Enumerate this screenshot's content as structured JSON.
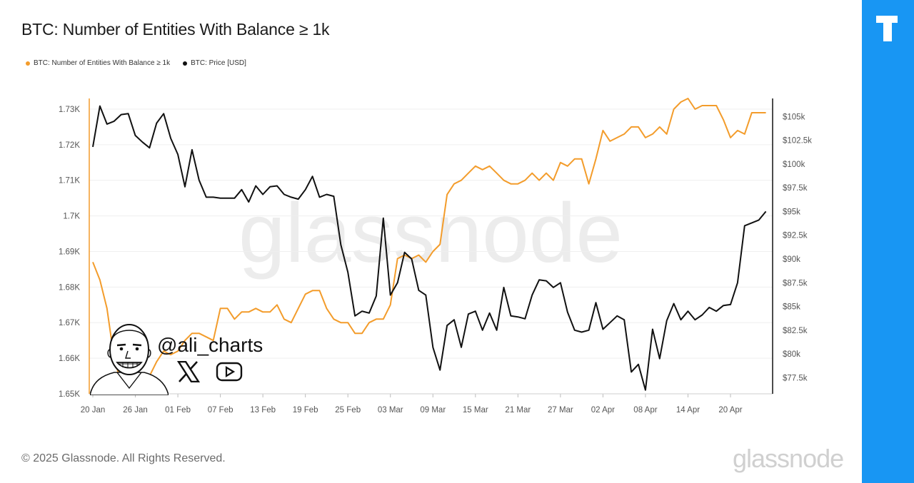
{
  "header": {
    "title": "BTC: Number of Entities With Balance ≥ 1k"
  },
  "footer": {
    "copyright": "© 2025 Glassnode. All Rights Reserved.",
    "brand": "glassnode"
  },
  "watermark": {
    "text": "glassnode",
    "author_handle": "@ali_charts"
  },
  "colors": {
    "entities": "#f39c2b",
    "price": "#111111",
    "accent": "#1896f3"
  },
  "icons": {
    "side": "tradingview-logo-icon",
    "x": "x-icon",
    "youtube": "youtube-icon"
  },
  "chart_data": {
    "type": "line",
    "x_ticks": [
      "20 Jan",
      "26 Jan",
      "01 Feb",
      "07 Feb",
      "13 Feb",
      "19 Feb",
      "25 Feb",
      "03 Mar",
      "09 Mar",
      "15 Mar",
      "21 Mar",
      "27 Mar",
      "02 Apr",
      "08 Apr",
      "14 Apr",
      "20 Apr"
    ],
    "y_left_ticks": [
      "1.65K",
      "1.66K",
      "1.67K",
      "1.68K",
      "1.69K",
      "1.7K",
      "1.71K",
      "1.72K",
      "1.73K"
    ],
    "y_right_ticks": [
      "$77.5k",
      "$80k",
      "$82.5k",
      "$85k",
      "$87.5k",
      "$90k",
      "$92.5k",
      "$95k",
      "$97.5k",
      "$100k",
      "$102.5k",
      "$105k"
    ],
    "y_left_range": [
      1650,
      1733
    ],
    "y_right_range": [
      75800,
      106900
    ],
    "x_range": [
      "2025-01-20",
      "2025-04-25"
    ],
    "grid": true,
    "legend_position": "top-left",
    "series": [
      {
        "name": "BTC: Number of Entities With Balance ≥ 1k",
        "axis": "left",
        "color": "#f39c2b",
        "x": [
          "2025-01-20",
          "2025-01-21",
          "2025-01-22",
          "2025-01-23",
          "2025-01-24",
          "2025-01-25",
          "2025-01-26",
          "2025-01-27",
          "2025-01-28",
          "2025-01-29",
          "2025-01-30",
          "2025-01-31",
          "2025-02-01",
          "2025-02-02",
          "2025-02-03",
          "2025-02-04",
          "2025-02-05",
          "2025-02-06",
          "2025-02-07",
          "2025-02-08",
          "2025-02-09",
          "2025-02-10",
          "2025-02-11",
          "2025-02-12",
          "2025-02-13",
          "2025-02-14",
          "2025-02-15",
          "2025-02-16",
          "2025-02-17",
          "2025-02-18",
          "2025-02-19",
          "2025-02-20",
          "2025-02-21",
          "2025-02-22",
          "2025-02-23",
          "2025-02-24",
          "2025-02-25",
          "2025-02-26",
          "2025-02-27",
          "2025-02-28",
          "2025-03-01",
          "2025-03-02",
          "2025-03-03",
          "2025-03-04",
          "2025-03-05",
          "2025-03-06",
          "2025-03-07",
          "2025-03-08",
          "2025-03-09",
          "2025-03-10",
          "2025-03-11",
          "2025-03-12",
          "2025-03-13",
          "2025-03-14",
          "2025-03-15",
          "2025-03-16",
          "2025-03-17",
          "2025-03-18",
          "2025-03-19",
          "2025-03-20",
          "2025-03-21",
          "2025-03-22",
          "2025-03-23",
          "2025-03-24",
          "2025-03-25",
          "2025-03-26",
          "2025-03-27",
          "2025-03-28",
          "2025-03-29",
          "2025-03-30",
          "2025-03-31",
          "2025-04-01",
          "2025-04-02",
          "2025-04-03",
          "2025-04-04",
          "2025-04-05",
          "2025-04-06",
          "2025-04-07",
          "2025-04-08",
          "2025-04-09",
          "2025-04-10",
          "2025-04-11",
          "2025-04-12",
          "2025-04-13",
          "2025-04-14",
          "2025-04-15",
          "2025-04-16",
          "2025-04-17",
          "2025-04-18",
          "2025-04-19",
          "2025-04-20",
          "2025-04-21",
          "2025-04-22",
          "2025-04-23",
          "2025-04-24",
          "2025-04-25"
        ],
        "values": [
          1687,
          1682,
          1674,
          1660,
          1653,
          1651,
          1652,
          1650,
          1655,
          1659,
          1662,
          1661,
          1662,
          1665,
          1667,
          1667,
          1666,
          1665,
          1674,
          1674,
          1671,
          1673,
          1673,
          1674,
          1673,
          1673,
          1675,
          1671,
          1670,
          1674,
          1678,
          1679,
          1679,
          1674,
          1671,
          1670,
          1670,
          1667,
          1667,
          1670,
          1671,
          1671,
          1675,
          1688,
          1689,
          1688,
          1689,
          1687,
          1690,
          1692,
          1706,
          1709,
          1710,
          1712,
          1714,
          1713,
          1714,
          1712,
          1710,
          1709,
          1709,
          1710,
          1712,
          1710,
          1712,
          1710,
          1715,
          1714,
          1716,
          1716,
          1709,
          1716,
          1724,
          1721,
          1722,
          1723,
          1725,
          1725,
          1722,
          1723,
          1725,
          1723,
          1730,
          1732,
          1733,
          1730,
          1731,
          1731,
          1731,
          1727,
          1722,
          1724,
          1723,
          1729,
          1729,
          1729
        ]
      },
      {
        "name": "BTC: Price [USD]",
        "axis": "right",
        "color": "#111111",
        "x": [
          "2025-01-20",
          "2025-01-21",
          "2025-01-22",
          "2025-01-23",
          "2025-01-24",
          "2025-01-25",
          "2025-01-26",
          "2025-01-27",
          "2025-01-28",
          "2025-01-29",
          "2025-01-30",
          "2025-01-31",
          "2025-02-01",
          "2025-02-02",
          "2025-02-03",
          "2025-02-04",
          "2025-02-05",
          "2025-02-06",
          "2025-02-07",
          "2025-02-08",
          "2025-02-09",
          "2025-02-10",
          "2025-02-11",
          "2025-02-12",
          "2025-02-13",
          "2025-02-14",
          "2025-02-15",
          "2025-02-16",
          "2025-02-17",
          "2025-02-18",
          "2025-02-19",
          "2025-02-20",
          "2025-02-21",
          "2025-02-22",
          "2025-02-23",
          "2025-02-24",
          "2025-02-25",
          "2025-02-26",
          "2025-02-27",
          "2025-02-28",
          "2025-03-01",
          "2025-03-02",
          "2025-03-03",
          "2025-03-04",
          "2025-03-05",
          "2025-03-06",
          "2025-03-07",
          "2025-03-08",
          "2025-03-09",
          "2025-03-10",
          "2025-03-11",
          "2025-03-12",
          "2025-03-13",
          "2025-03-14",
          "2025-03-15",
          "2025-03-16",
          "2025-03-17",
          "2025-03-18",
          "2025-03-19",
          "2025-03-20",
          "2025-03-21",
          "2025-03-22",
          "2025-03-23",
          "2025-03-24",
          "2025-03-25",
          "2025-03-26",
          "2025-03-27",
          "2025-03-28",
          "2025-03-29",
          "2025-03-30",
          "2025-03-31",
          "2025-04-01",
          "2025-04-02",
          "2025-04-03",
          "2025-04-04",
          "2025-04-05",
          "2025-04-06",
          "2025-04-07",
          "2025-04-08",
          "2025-04-09",
          "2025-04-10",
          "2025-04-11",
          "2025-04-12",
          "2025-04-13",
          "2025-04-14",
          "2025-04-15",
          "2025-04-16",
          "2025-04-17",
          "2025-04-18",
          "2025-04-19",
          "2025-04-20",
          "2025-04-21",
          "2025-04-22",
          "2025-04-23",
          "2025-04-24",
          "2025-04-25"
        ],
        "values": [
          101800,
          106100,
          104200,
          104500,
          105200,
          105300,
          103000,
          102300,
          101700,
          104300,
          105300,
          102700,
          101000,
          97600,
          101500,
          98300,
          96500,
          96500,
          96400,
          96400,
          96400,
          97300,
          96000,
          97700,
          96800,
          97600,
          97700,
          96800,
          96500,
          96300,
          97300,
          98700,
          96500,
          96800,
          96600,
          91500,
          88600,
          84000,
          84500,
          84300,
          86100,
          94300,
          86200,
          87500,
          90700,
          90000,
          86700,
          86200,
          80700,
          78300,
          83000,
          83600,
          80700,
          84200,
          84500,
          82500,
          84300,
          82500,
          87000,
          84000,
          83900,
          83700,
          86200,
          87800,
          87700,
          87000,
          87500,
          84400,
          82500,
          82300,
          82500,
          85400,
          82600,
          83300,
          84000,
          83600,
          78100,
          78900,
          76200,
          82600,
          79500,
          83500,
          85300,
          83600,
          84500,
          83600,
          84100,
          84900,
          84500,
          85100,
          85200,
          87500,
          93500,
          93800,
          94100,
          95000
        ]
      }
    ]
  }
}
